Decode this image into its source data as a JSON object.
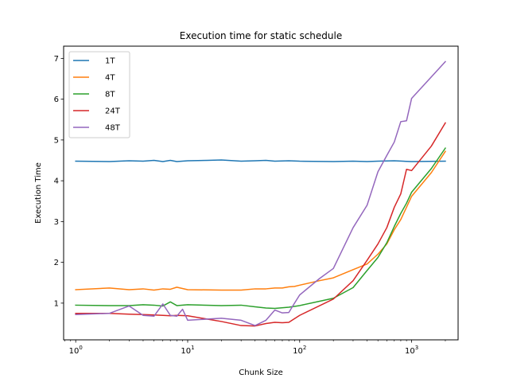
{
  "chart_data": {
    "type": "line",
    "title": "Execution time for static schedule",
    "xlabel": "Chunk Size",
    "ylabel": "Execution Time",
    "xscale": "log",
    "xlim": [
      0.78,
      2600
    ],
    "ylim": [
      0.1,
      7.3
    ],
    "x_ticks": [
      {
        "value": 1,
        "base": "10",
        "exp": "0"
      },
      {
        "value": 10,
        "base": "10",
        "exp": "1"
      },
      {
        "value": 100,
        "base": "10",
        "exp": "2"
      },
      {
        "value": 1000,
        "base": "10",
        "exp": "3"
      }
    ],
    "y_ticks": [
      1,
      2,
      3,
      4,
      5,
      6,
      7
    ],
    "y_tick_labels": [
      "1",
      "2",
      "3",
      "4",
      "5",
      "6",
      "7"
    ],
    "grid": false,
    "legend": "top-left",
    "series": [
      {
        "name": "1T",
        "color": "#1f77b4",
        "points": [
          [
            1,
            4.48
          ],
          [
            2,
            4.47
          ],
          [
            3,
            4.49
          ],
          [
            4,
            4.48
          ],
          [
            5,
            4.5
          ],
          [
            6,
            4.47
          ],
          [
            7,
            4.5
          ],
          [
            8,
            4.47
          ],
          [
            10,
            4.49
          ],
          [
            15,
            4.5
          ],
          [
            20,
            4.51
          ],
          [
            30,
            4.48
          ],
          [
            40,
            4.49
          ],
          [
            50,
            4.5
          ],
          [
            60,
            4.48
          ],
          [
            80,
            4.49
          ],
          [
            100,
            4.48
          ],
          [
            200,
            4.47
          ],
          [
            300,
            4.48
          ],
          [
            400,
            4.47
          ],
          [
            500,
            4.48
          ],
          [
            700,
            4.49
          ],
          [
            1000,
            4.47
          ],
          [
            2000,
            4.48
          ]
        ]
      },
      {
        "name": "4T",
        "color": "#ff7f0e",
        "points": [
          [
            1,
            1.33
          ],
          [
            2,
            1.37
          ],
          [
            3,
            1.33
          ],
          [
            4,
            1.35
          ],
          [
            5,
            1.32
          ],
          [
            6,
            1.35
          ],
          [
            7,
            1.34
          ],
          [
            8,
            1.39
          ],
          [
            10,
            1.33
          ],
          [
            20,
            1.32
          ],
          [
            30,
            1.32
          ],
          [
            40,
            1.35
          ],
          [
            50,
            1.35
          ],
          [
            60,
            1.37
          ],
          [
            70,
            1.37
          ],
          [
            80,
            1.4
          ],
          [
            90,
            1.41
          ],
          [
            100,
            1.44
          ],
          [
            150,
            1.55
          ],
          [
            200,
            1.62
          ],
          [
            300,
            1.82
          ],
          [
            400,
            1.96
          ],
          [
            500,
            2.2
          ],
          [
            600,
            2.45
          ],
          [
            700,
            2.8
          ],
          [
            800,
            3.05
          ],
          [
            900,
            3.35
          ],
          [
            1000,
            3.62
          ],
          [
            1500,
            4.2
          ],
          [
            2000,
            4.72
          ]
        ]
      },
      {
        "name": "8T",
        "color": "#2ca02c",
        "points": [
          [
            1,
            0.95
          ],
          [
            2,
            0.94
          ],
          [
            3,
            0.94
          ],
          [
            4,
            0.96
          ],
          [
            5,
            0.95
          ],
          [
            6,
            0.93
          ],
          [
            7,
            1.03
          ],
          [
            8,
            0.94
          ],
          [
            10,
            0.96
          ],
          [
            20,
            0.94
          ],
          [
            30,
            0.95
          ],
          [
            40,
            0.91
          ],
          [
            50,
            0.88
          ],
          [
            60,
            0.87
          ],
          [
            80,
            0.9
          ],
          [
            100,
            0.94
          ],
          [
            200,
            1.12
          ],
          [
            300,
            1.38
          ],
          [
            400,
            1.8
          ],
          [
            500,
            2.12
          ],
          [
            600,
            2.48
          ],
          [
            700,
            2.88
          ],
          [
            800,
            3.2
          ],
          [
            900,
            3.45
          ],
          [
            1000,
            3.72
          ],
          [
            1500,
            4.3
          ],
          [
            2000,
            4.8
          ]
        ]
      },
      {
        "name": "24T",
        "color": "#d62728",
        "points": [
          [
            1,
            0.75
          ],
          [
            2,
            0.75
          ],
          [
            3,
            0.73
          ],
          [
            4,
            0.72
          ],
          [
            5,
            0.71
          ],
          [
            6,
            0.7
          ],
          [
            7,
            0.69
          ],
          [
            8,
            0.7
          ],
          [
            10,
            0.69
          ],
          [
            20,
            0.55
          ],
          [
            30,
            0.45
          ],
          [
            40,
            0.44
          ],
          [
            50,
            0.5
          ],
          [
            60,
            0.53
          ],
          [
            70,
            0.52
          ],
          [
            80,
            0.53
          ],
          [
            100,
            0.7
          ],
          [
            200,
            1.1
          ],
          [
            300,
            1.55
          ],
          [
            400,
            2.05
          ],
          [
            500,
            2.45
          ],
          [
            600,
            2.85
          ],
          [
            700,
            3.35
          ],
          [
            800,
            3.68
          ],
          [
            900,
            4.28
          ],
          [
            1000,
            4.25
          ],
          [
            1500,
            4.85
          ],
          [
            2000,
            5.42
          ]
        ]
      },
      {
        "name": "48T",
        "color": "#9467bd",
        "points": [
          [
            1,
            0.72
          ],
          [
            2,
            0.75
          ],
          [
            3,
            0.93
          ],
          [
            4,
            0.7
          ],
          [
            5,
            0.68
          ],
          [
            6,
            0.98
          ],
          [
            7,
            0.7
          ],
          [
            8,
            0.68
          ],
          [
            9,
            0.85
          ],
          [
            10,
            0.58
          ],
          [
            20,
            0.63
          ],
          [
            30,
            0.58
          ],
          [
            40,
            0.45
          ],
          [
            50,
            0.58
          ],
          [
            60,
            0.83
          ],
          [
            70,
            0.76
          ],
          [
            80,
            0.77
          ],
          [
            90,
            1.0
          ],
          [
            100,
            1.2
          ],
          [
            150,
            1.6
          ],
          [
            200,
            1.85
          ],
          [
            300,
            2.85
          ],
          [
            400,
            3.4
          ],
          [
            500,
            4.22
          ],
          [
            600,
            4.62
          ],
          [
            700,
            4.95
          ],
          [
            800,
            5.45
          ],
          [
            900,
            5.47
          ],
          [
            1000,
            6.02
          ],
          [
            2000,
            6.92
          ]
        ]
      }
    ]
  }
}
